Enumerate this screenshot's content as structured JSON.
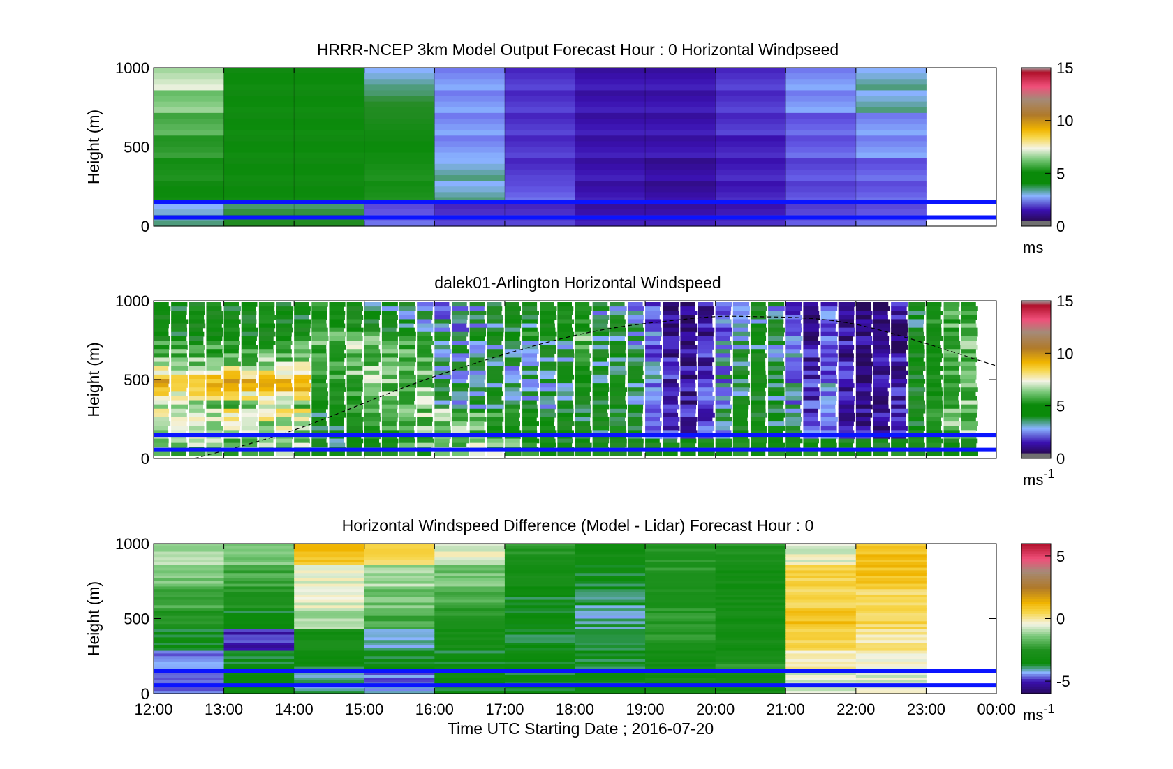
{
  "chart_data": [
    {
      "type": "heatmap",
      "title": "HRRR-NCEP 3km Model Output   Forecast Hour : 0 Horizontal Windpseed",
      "ylabel": "Height (m)",
      "ylim": [
        0,
        1000
      ],
      "yticks": [
        "0",
        "500",
        "1000"
      ],
      "xlim": [
        "12:00",
        "00:00"
      ],
      "colorbar": {
        "ticks": [
          "0",
          "5",
          "10",
          "15"
        ],
        "range": [
          0,
          15
        ],
        "unit": "ms"
      },
      "guide_lines_m": [
        55,
        150
      ],
      "columns": [
        {
          "start": "12:00",
          "speeds": [
            7,
            6.5,
            6,
            5.5,
            5,
            4.5,
            3
          ]
        },
        {
          "start": "13:00",
          "speeds": [
            4.5,
            4.5,
            4.5,
            4.5,
            4.5,
            4.5,
            3.5
          ]
        },
        {
          "start": "14:00",
          "speeds": [
            4.5,
            4.5,
            4.5,
            4.5,
            4.5,
            4.5,
            3.5
          ]
        },
        {
          "start": "15:00",
          "speeds": [
            3,
            3.5,
            4,
            4.5,
            5,
            5,
            2
          ]
        },
        {
          "start": "16:00",
          "speeds": [
            2.5,
            2.5,
            2.5,
            2.5,
            3,
            3,
            1.5
          ]
        },
        {
          "start": "17:00",
          "speeds": [
            1.5,
            1.5,
            1.5,
            1.5,
            1.5,
            2,
            1.5
          ]
        },
        {
          "start": "18:00",
          "speeds": [
            1,
            1,
            1,
            1,
            1,
            1,
            1
          ]
        },
        {
          "start": "19:00",
          "speeds": [
            1,
            1,
            1,
            1,
            0.8,
            0.8,
            1
          ]
        },
        {
          "start": "20:00",
          "speeds": [
            1.5,
            1.5,
            1.5,
            1.2,
            1.2,
            1.2,
            1.2
          ]
        },
        {
          "start": "21:00",
          "speeds": [
            2.5,
            2.5,
            2,
            2,
            1.8,
            1.8,
            1.8
          ]
        },
        {
          "start": "22:00",
          "speeds": [
            3,
            3,
            2.5,
            2.5,
            2,
            2,
            2
          ]
        }
      ]
    },
    {
      "type": "heatmap",
      "title": "dalek01-Arlington  Horizontal Windspeed",
      "ylabel": "Height (m)",
      "ylim": [
        0,
        1000
      ],
      "yticks": [
        "0",
        "500",
        "1000"
      ],
      "xlim": [
        "12:00",
        "00:00"
      ],
      "colorbar": {
        "ticks": [
          "0",
          "5",
          "10",
          "15"
        ],
        "range": [
          0,
          15
        ],
        "unit": "ms",
        "unit_exponent": "-1"
      },
      "guide_lines_m": [
        55,
        150
      ],
      "profile_note": "lidar profiles every ~15 min; warm (8-10 m/s) layer near 400-550 m before 14:00, weak (1-3 m/s) winds in afternoon aloft",
      "boundary_layer_curve": {
        "x": [
          "12:35",
          "14:00",
          "16:00",
          "18:00",
          "19:30",
          "20:30",
          "22:00",
          "23:59"
        ],
        "y": [
          0,
          180,
          520,
          780,
          880,
          900,
          850,
          590
        ]
      }
    },
    {
      "type": "heatmap",
      "title": "Horizontal Windspeed Difference (Model - Lidar) Forecast Hour : 0",
      "ylabel": "Height (m)",
      "xlabel": "Time UTC  Starting Date ; 2016-07-20",
      "ylim": [
        0,
        1000
      ],
      "yticks": [
        "0",
        "500",
        "1000"
      ],
      "xticks": [
        "12:00",
        "13:00",
        "14:00",
        "15:00",
        "16:00",
        "17:00",
        "18:00",
        "19:00",
        "20:00",
        "21:00",
        "22:00",
        "23:00",
        "00:00"
      ],
      "colorbar": {
        "ticks": [
          "-5",
          "0",
          "5"
        ],
        "range": [
          -6,
          6
        ],
        "unit": "ms",
        "unit_exponent": "-1"
      },
      "guide_lines_m": [
        55,
        150
      ],
      "columns": [
        {
          "start": "12:00",
          "diffs": [
            -1,
            -1.5,
            -2,
            -2.5,
            -3.5,
            -4.5,
            -4.5
          ]
        },
        {
          "start": "13:00",
          "diffs": [
            -1.5,
            -2,
            -2.5,
            -3.5,
            -5,
            -3.5,
            -3.5
          ]
        },
        {
          "start": "14:00",
          "diffs": [
            1,
            -0.5,
            -0.5,
            -1,
            -3,
            -3.5,
            -4
          ]
        },
        {
          "start": "15:00",
          "diffs": [
            0.5,
            -1,
            -1.5,
            -2,
            -4,
            -3.5,
            -4.5
          ]
        },
        {
          "start": "16:00",
          "diffs": [
            -0.5,
            -1.5,
            -2,
            -2.5,
            -3,
            -3.5,
            -3.5
          ]
        },
        {
          "start": "17:00",
          "diffs": [
            -2.5,
            -3,
            -3.5,
            -3.5,
            -3.5,
            -3.5,
            -3.5
          ]
        },
        {
          "start": "18:00",
          "diffs": [
            -3,
            -3.5,
            -4,
            -4,
            -3.5,
            -3.5,
            -3.5
          ]
        },
        {
          "start": "19:00",
          "diffs": [
            -2.5,
            -2.5,
            -2.5,
            -2.5,
            -2.5,
            -3,
            -3
          ]
        },
        {
          "start": "20:00",
          "diffs": [
            -2.5,
            -3,
            -3,
            -3,
            -3,
            -2.5,
            -3
          ]
        },
        {
          "start": "21:00",
          "diffs": [
            -0.5,
            0.5,
            0.5,
            1,
            0.5,
            0,
            -0.5
          ]
        },
        {
          "start": "22:00",
          "diffs": [
            1,
            1,
            0.5,
            0.5,
            0,
            -0.3,
            -0.5
          ]
        }
      ]
    }
  ]
}
